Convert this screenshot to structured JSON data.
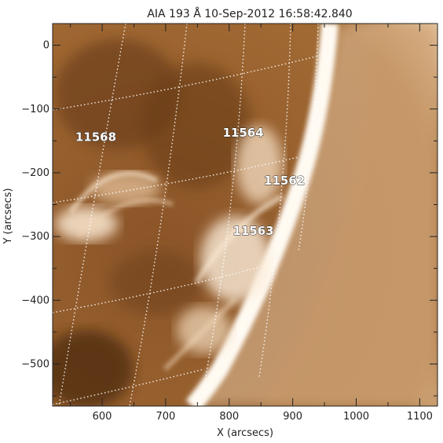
{
  "title": "AIA 193 Å 10-Sep-2012 16:58:42.840",
  "xlabel": "X (arcsecs)",
  "ylabel": "Y (arcsecs)",
  "x_ticks": [
    {
      "value": 600,
      "label": "600"
    },
    {
      "value": 700,
      "label": "700"
    },
    {
      "value": 800,
      "label": "800"
    },
    {
      "value": 900,
      "label": "900"
    },
    {
      "value": 1000,
      "label": "1000"
    },
    {
      "value": 1100,
      "label": "1100"
    }
  ],
  "y_ticks": [
    {
      "value": 0,
      "label": "0"
    },
    {
      "value": -100,
      "label": "−100"
    },
    {
      "value": -200,
      "label": "−200"
    },
    {
      "value": -300,
      "label": "−300"
    },
    {
      "value": -400,
      "label": "−400"
    },
    {
      "value": -500,
      "label": "−500"
    }
  ],
  "x_range": [
    522,
    1128
  ],
  "y_range": [
    -566,
    34
  ],
  "active_regions": [
    {
      "number": "11568",
      "x": 590,
      "y": -143
    },
    {
      "number": "11564",
      "x": 822,
      "y": -136
    },
    {
      "number": "11562",
      "x": 887,
      "y": -211
    },
    {
      "number": "11563",
      "x": 838,
      "y": -290
    }
  ],
  "colors": {
    "image_tint": "#a26a33",
    "grid": "#ffffff"
  }
}
